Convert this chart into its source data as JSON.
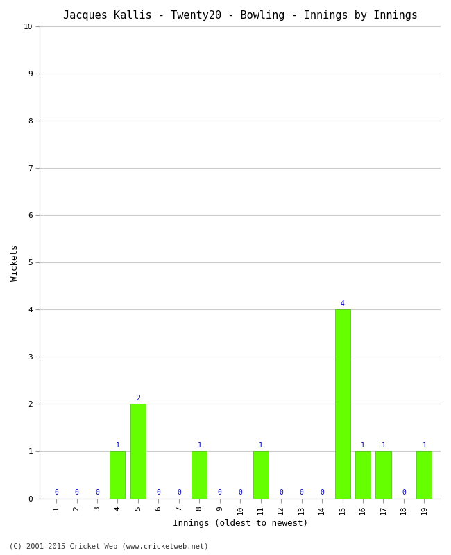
{
  "title": "Jacques Kallis - Twenty20 - Bowling - Innings by Innings",
  "xlabel": "Innings (oldest to newest)",
  "ylabel": "Wickets",
  "categories": [
    "1",
    "2",
    "3",
    "4",
    "5",
    "6",
    "7",
    "8",
    "9",
    "10",
    "11",
    "12",
    "13",
    "14",
    "15",
    "16",
    "17",
    "18",
    "19"
  ],
  "values": [
    0,
    0,
    0,
    1,
    2,
    0,
    0,
    1,
    0,
    0,
    1,
    0,
    0,
    0,
    4,
    1,
    1,
    0,
    1
  ],
  "bar_color": "#66ff00",
  "bar_edge_color": "#44bb00",
  "ylim": [
    0,
    10
  ],
  "yticks": [
    0,
    1,
    2,
    3,
    4,
    5,
    6,
    7,
    8,
    9,
    10
  ],
  "background_color": "#ffffff",
  "plot_bg_color": "#ffffff",
  "title_fontsize": 11,
  "label_fontsize": 9,
  "tick_fontsize": 8,
  "annotation_fontsize": 7,
  "annotation_color": "#0000cc",
  "footer": "(C) 2001-2015 Cricket Web (www.cricketweb.net)"
}
